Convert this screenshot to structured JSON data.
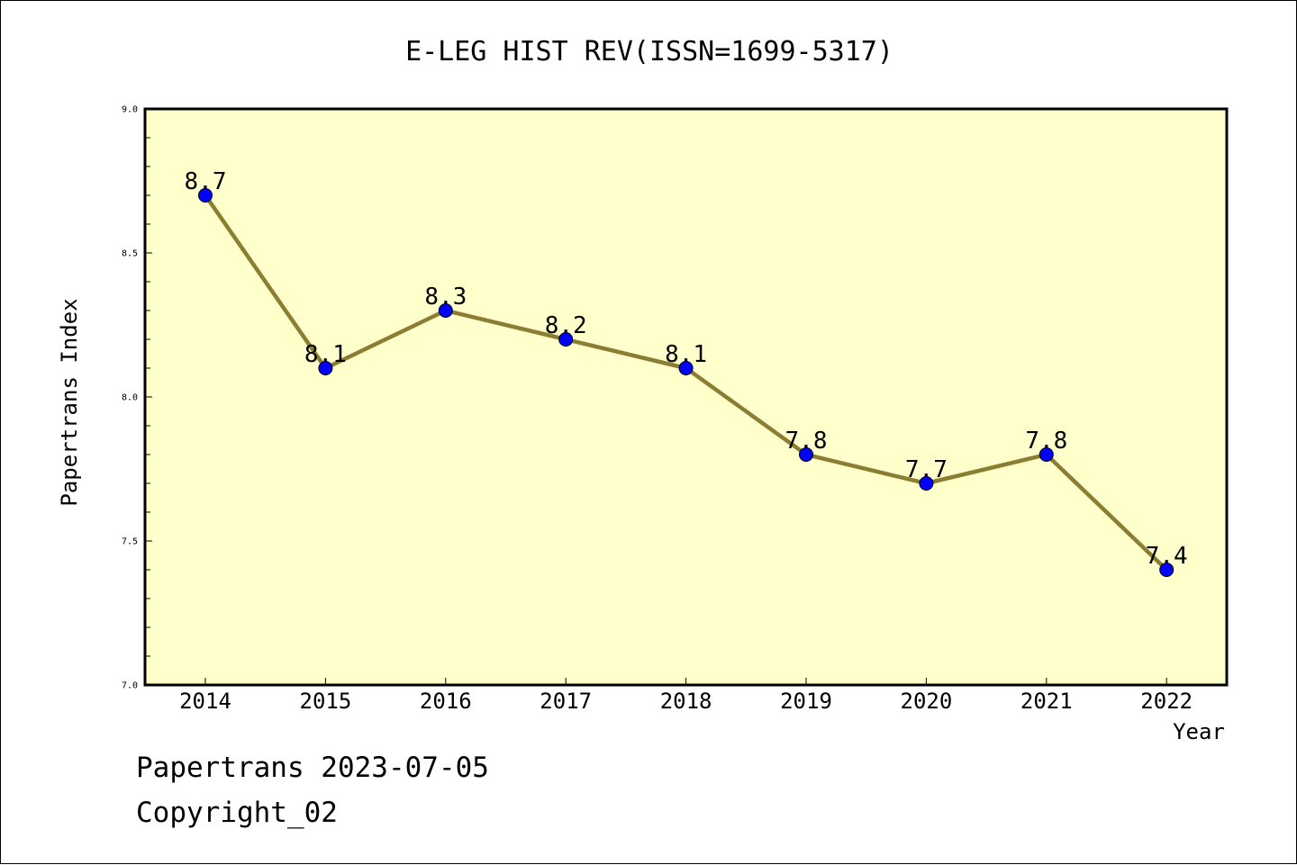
{
  "chart_data": {
    "type": "line",
    "title": "E-LEG HIST REV(ISSN=1699-5317)",
    "xlabel": "Year",
    "ylabel": "Papertrans Index",
    "categories": [
      "2014",
      "2015",
      "2016",
      "2017",
      "2018",
      "2019",
      "2020",
      "2021",
      "2022"
    ],
    "series": [
      {
        "values": [
          8.7,
          8.1,
          8.3,
          8.2,
          8.1,
          7.8,
          7.7,
          7.8,
          7.4
        ],
        "data_labels": [
          "8.7",
          "8.1",
          "8.3",
          "8.2",
          "8.1",
          "7.8",
          "7.7",
          "7.8",
          "7.4"
        ]
      }
    ],
    "ylim": [
      7.0,
      9.0
    ],
    "y_ticks": [
      "9.0",
      "8.5",
      "8.0",
      "7.5",
      "7.0"
    ],
    "grid": false,
    "legend": "none",
    "colors": {
      "plot_background": "#ffffcc",
      "line": "#8b7d32",
      "marker": "#0000ff"
    }
  },
  "footer": {
    "line1": "Papertrans 2023-07-05",
    "line2": "Copyright_02"
  }
}
